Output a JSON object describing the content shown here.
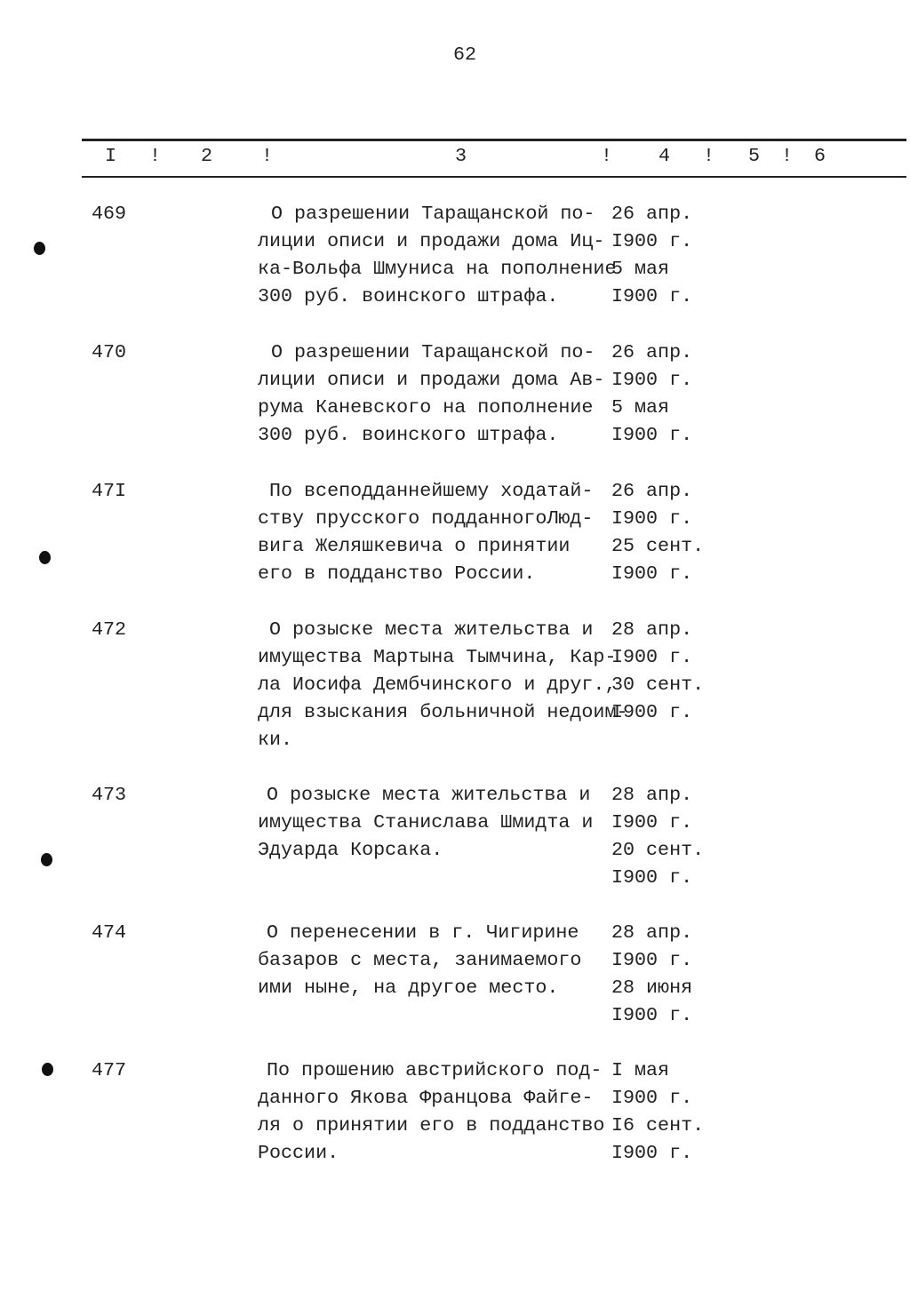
{
  "page_number": "62",
  "header": {
    "columns": [
      "I",
      "!",
      "2",
      "!",
      "3",
      "!",
      "4",
      "!",
      "5",
      "!",
      "6"
    ]
  },
  "entries": [
    {
      "number": "469",
      "text": [
        "О разрешении Таращанской по-",
        "лиции описи и продажи дома Иц-",
        "ка-Вольфа Шмуниса на пополнение",
        "300 руб. воинского штрафа."
      ],
      "dates": [
        "26 апр.",
        "I900 г.",
        "5 мая",
        "I900 г."
      ]
    },
    {
      "number": "470",
      "text": [
        "О разрешении Таращанской по-",
        "лиции описи и продажи дома Ав-",
        "рума Каневского на пополнение",
        "300 руб. воинского штрафа."
      ],
      "dates": [
        "26 апр.",
        "I900 г.",
        "5 мая",
        "I900 г."
      ]
    },
    {
      "number": "47I",
      "text": [
        "По всеподданнейшему ходатай-",
        "ству прусского подданногоЛюд-",
        "вига Желяшкевича о принятии",
        "его в подданство России."
      ],
      "dates": [
        "26 апр.",
        "I900 г.",
        "25 сент.",
        "I900 г."
      ]
    },
    {
      "number": "472",
      "text": [
        "О розыске места жительства и",
        "имущества Мартына Тымчина, Кар-",
        "ла Иосифа Дембчинского и друг.,",
        "для взыскания больничной недоим-",
        "ки."
      ],
      "dates": [
        "28 апр.",
        "I900 г.",
        "30 сент.",
        "I900 г."
      ]
    },
    {
      "number": "473",
      "text": [
        "О розыске места жительства и",
        "имущества Станислава Шмидта и",
        "Эдуарда Корсака."
      ],
      "dates": [
        "28 апр.",
        "I900 г.",
        "20 сент.",
        "I900 г."
      ]
    },
    {
      "number": "474",
      "text": [
        "О перенесении в г. Чигирине",
        "базаров с места, занимаемого",
        "ими ныне, на другое место."
      ],
      "dates": [
        "28 апр.",
        "I900 г.",
        "28 июня",
        "I900 г."
      ]
    },
    {
      "number": "477",
      "text": [
        "По прошению австрийского под-",
        "данного Якова Францова Файге-",
        "ля о принятии его в подданство",
        "России."
      ],
      "dates": [
        "I мая",
        "I900 г.",
        "I6 сент.",
        "I900 г."
      ]
    }
  ]
}
